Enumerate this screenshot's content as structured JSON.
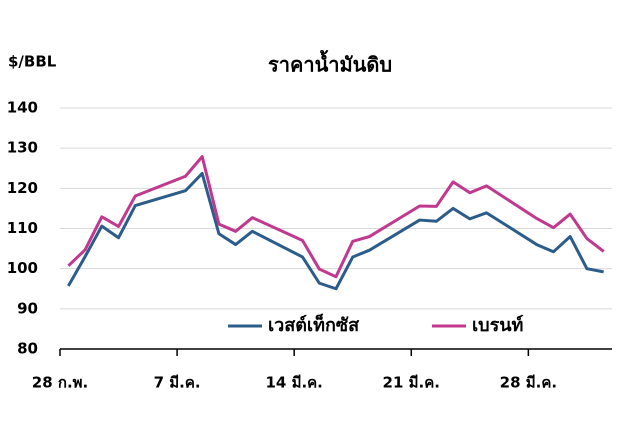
{
  "chart_data": {
    "type": "line",
    "title": "ราคาน้ำมันดิบ",
    "y_label": "$/BBL",
    "x": [
      0,
      1,
      2,
      3,
      4,
      7,
      8,
      9,
      10,
      11,
      14,
      15,
      16,
      17,
      18,
      21,
      22,
      23,
      24,
      25,
      28,
      29,
      30,
      31,
      32
    ],
    "xlim": [
      -0.5,
      32.5
    ],
    "xticks": [
      {
        "value": -0.5,
        "label": "28 ก.พ."
      },
      {
        "value": 6.5,
        "label": "7 มี.ค."
      },
      {
        "value": 13.5,
        "label": "14 มี.ค."
      },
      {
        "value": 20.5,
        "label": "21 มี.ค."
      },
      {
        "value": 27.5,
        "label": "28 มี.ค."
      }
    ],
    "ylim": [
      80,
      140
    ],
    "yticks": [
      80,
      90,
      100,
      110,
      120,
      130,
      140
    ],
    "grid": true,
    "legend": "lower center",
    "series": [
      {
        "name": "เวสต์เท็กซัส",
        "color": "#2b5c8a",
        "values": [
          95.7,
          103,
          110.6,
          107.7,
          115.7,
          119.4,
          123.7,
          108.7,
          106,
          109.3,
          102.9,
          96.4,
          95,
          102.9,
          104.6,
          112.1,
          111.8,
          115,
          112.4,
          113.9,
          106,
          104.2,
          108,
          100,
          99.2
        ]
      },
      {
        "name": "เบรนท์",
        "color": "#c0398f",
        "values": [
          100.7,
          104.7,
          112.9,
          110.5,
          118.1,
          123,
          127.9,
          111.1,
          109.3,
          112.7,
          107,
          99.9,
          98,
          106.8,
          108,
          115.6,
          115.5,
          121.6,
          118.9,
          120.6,
          112.5,
          110.2,
          113.6,
          107.5,
          104.3
        ]
      }
    ]
  }
}
